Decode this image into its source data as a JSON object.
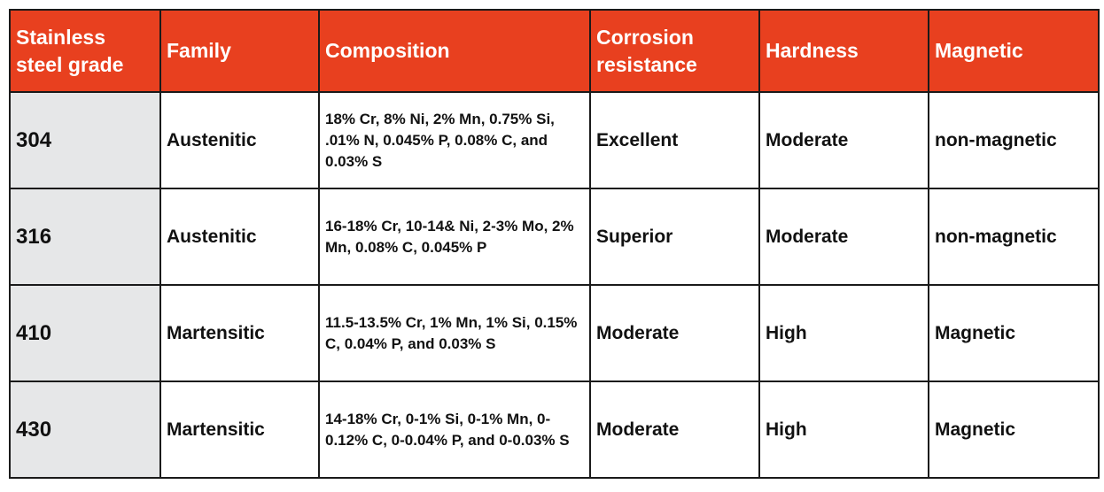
{
  "colors": {
    "header_bg": "#e8401f",
    "grade_bg": "#e6e7e8",
    "border": "#1a1a1a"
  },
  "headers": [
    "Stainless steel grade",
    "Family",
    "Composition",
    "Corrosion resistance",
    "Hardness",
    "Magnetic"
  ],
  "rows": [
    {
      "grade": "304",
      "family": "Austenitic",
      "composition": "18% Cr, 8% Ni, 2% Mn, 0.75% Si, .01% N, 0.045% P, 0.08% C, and 0.03% S",
      "corrosion": "Excellent",
      "hardness": "Moderate",
      "magnetic": "non-magnetic"
    },
    {
      "grade": "316",
      "family": "Austenitic",
      "composition": "16-18% Cr, 10-14& Ni, 2-3% Mo, 2% Mn, 0.08% C, 0.045% P",
      "corrosion": "Superior",
      "hardness": "Moderate",
      "magnetic": "non-magnetic"
    },
    {
      "grade": "410",
      "family": "Martensitic",
      "composition": "11.5-13.5% Cr, 1% Mn, 1% Si, 0.15% C, 0.04% P, and 0.03% S",
      "corrosion": "Moderate",
      "hardness": "High",
      "magnetic": "Magnetic"
    },
    {
      "grade": "430",
      "family": "Martensitic",
      "composition": "14-18% Cr, 0-1% Si, 0-1% Mn, 0-0.12% C, 0-0.04% P, and 0-0.03% S",
      "corrosion": "Moderate",
      "hardness": "High",
      "magnetic": "Magnetic"
    }
  ]
}
